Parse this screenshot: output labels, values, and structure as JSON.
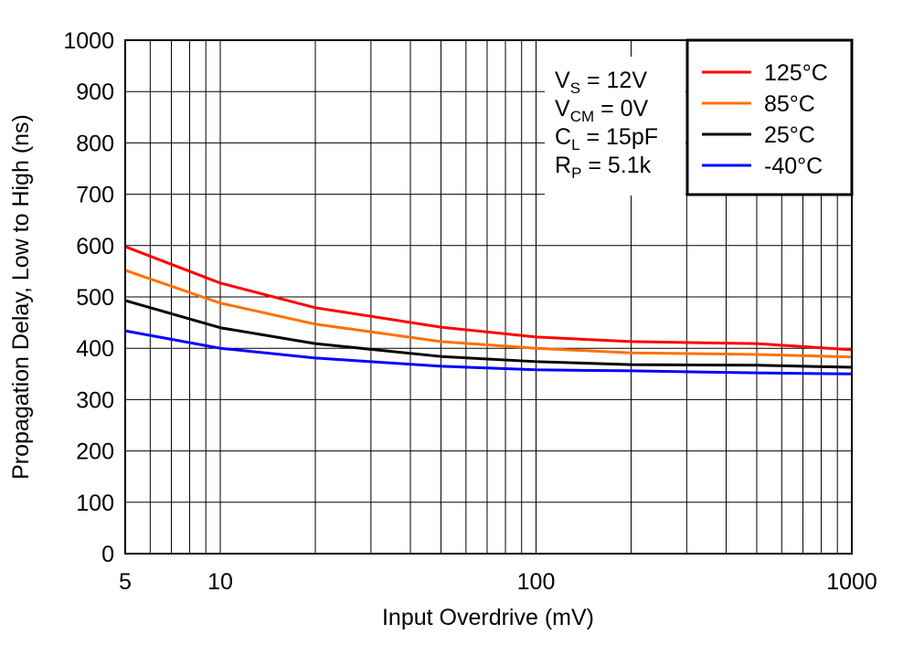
{
  "chart_data": {
    "type": "line",
    "title": "",
    "xlabel": "Input Overdrive (mV)",
    "ylabel": "Propagation Delay, Low to High (ns)",
    "xscale": "log",
    "xlim": [
      5,
      1000
    ],
    "ylim": [
      0,
      1000
    ],
    "grid": true,
    "x_tick_labels": [
      "5",
      "10",
      "100",
      "1000"
    ],
    "x_ticks": [
      5,
      10,
      100,
      1000
    ],
    "y_ticks": [
      0,
      100,
      200,
      300,
      400,
      500,
      600,
      700,
      800,
      900,
      1000
    ],
    "y_tick_labels": [
      "0",
      "100",
      "200",
      "300",
      "400",
      "500",
      "600",
      "700",
      "800",
      "900",
      "1000"
    ],
    "legend_placement": "top-right",
    "annotation": [
      {
        "main": "V",
        "sub": "S",
        "rest": " = 12V"
      },
      {
        "main": "V",
        "sub": "CM",
        "rest": " = 0V"
      },
      {
        "main": "C",
        "sub": "L",
        "rest": " = 15pF"
      },
      {
        "main": "R",
        "sub": "P",
        "rest": " = 5.1k"
      }
    ],
    "x": [
      5,
      10,
      20,
      50,
      100,
      200,
      500,
      1000
    ],
    "series": [
      {
        "name": "125°C",
        "color": "#ff0000",
        "values": [
          598,
          527,
          479,
          441,
          422,
          413,
          409,
          397
        ]
      },
      {
        "name": "85°C",
        "color": "#ff7000",
        "values": [
          552,
          488,
          447,
          413,
          400,
          391,
          388,
          383
        ]
      },
      {
        "name": "25°C",
        "color": "#000000",
        "values": [
          493,
          440,
          409,
          384,
          374,
          368,
          367,
          363
        ]
      },
      {
        "name": "-40°C",
        "color": "#0000ff",
        "values": [
          434,
          400,
          381,
          365,
          358,
          356,
          352,
          350
        ]
      }
    ]
  }
}
